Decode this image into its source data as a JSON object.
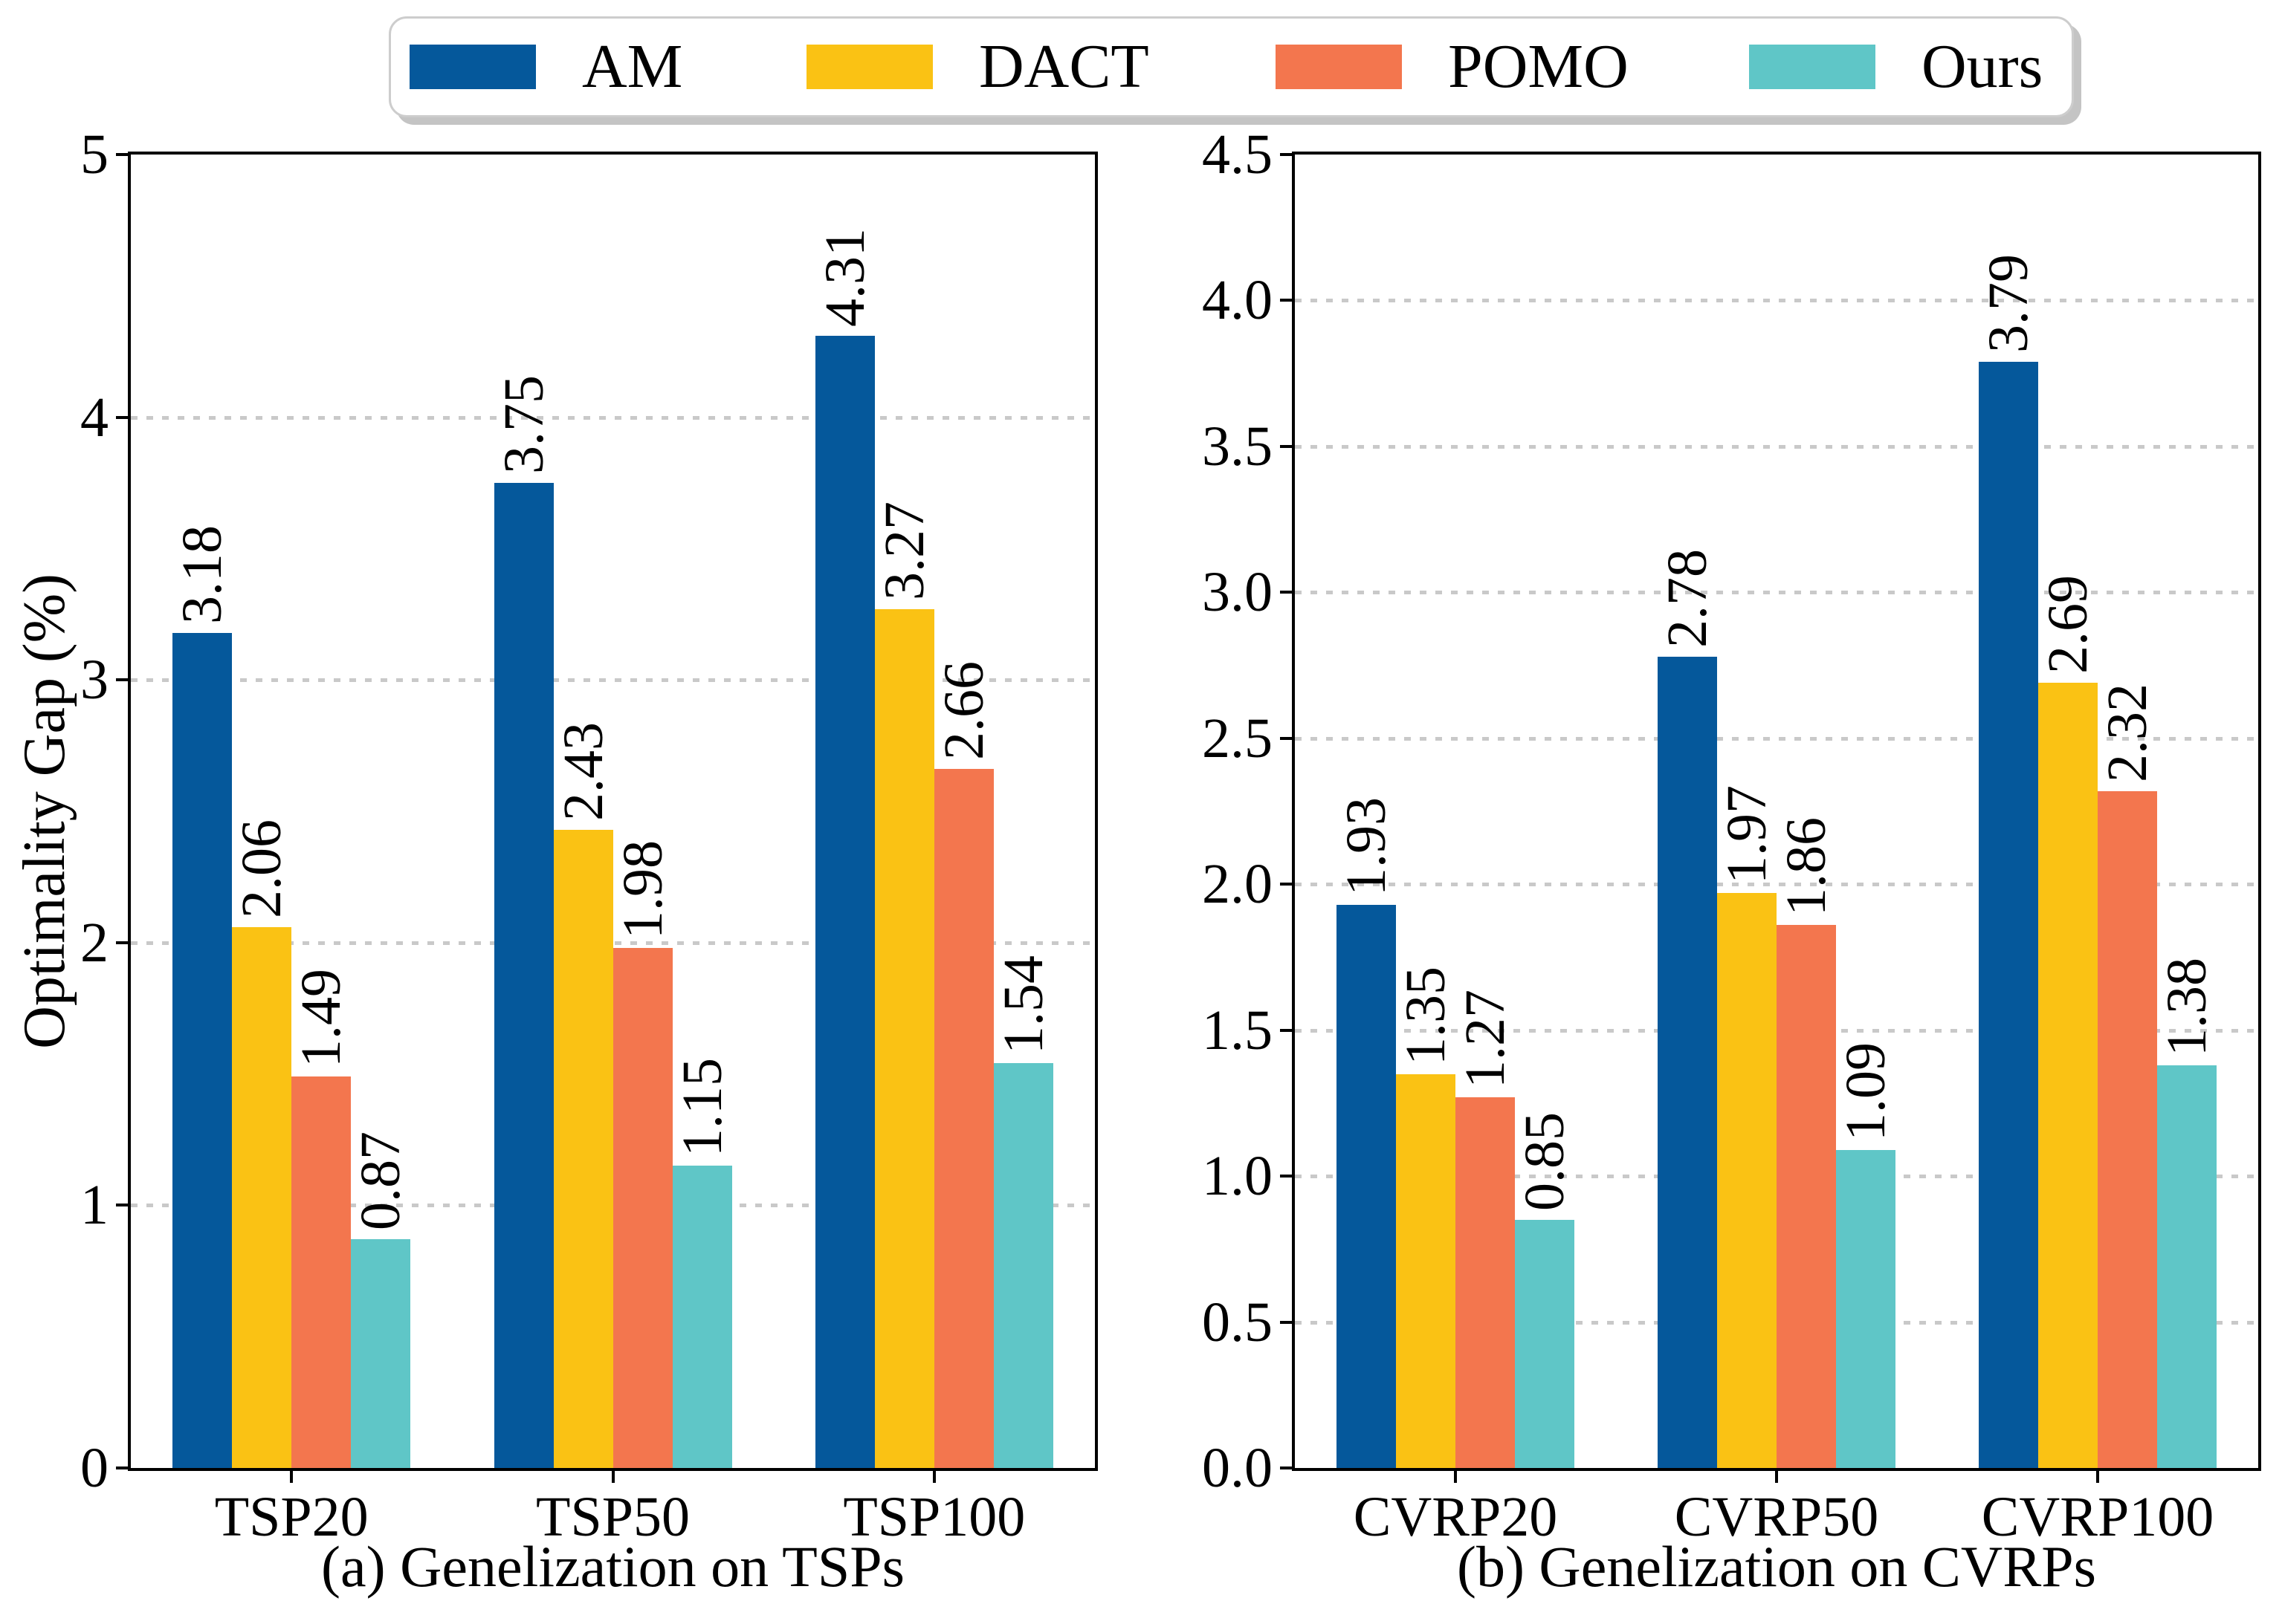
{
  "figure": {
    "background": "#ffffff",
    "text_color": "#000000",
    "grid_color": "#c9c9c9",
    "grid_style": "dotted"
  },
  "legend": {
    "position": "top",
    "entries": [
      {
        "label": "AM",
        "color": "#05589B"
      },
      {
        "label": "DACT",
        "color": "#FAC214"
      },
      {
        "label": "POMO",
        "color": "#F3764E"
      },
      {
        "label": "Ours",
        "color": "#5FC6C7"
      }
    ]
  },
  "chart_data": [
    {
      "type": "bar",
      "title": "(a) Genelization on TSPs",
      "ylabel": "Optimality Gap (%)",
      "categories": [
        "TSP20",
        "TSP50",
        "TSP100"
      ],
      "series": [
        {
          "name": "AM",
          "color": "#05589B",
          "values": [
            3.18,
            3.75,
            4.31
          ]
        },
        {
          "name": "DACT",
          "color": "#FAC214",
          "values": [
            2.06,
            2.43,
            3.27
          ]
        },
        {
          "name": "POMO",
          "color": "#F3764E",
          "values": [
            1.49,
            1.98,
            2.66
          ]
        },
        {
          "name": "Ours",
          "color": "#5FC6C7",
          "values": [
            0.87,
            1.15,
            1.54
          ]
        }
      ],
      "ylim": [
        0,
        5
      ],
      "ytick_values": [
        0,
        1,
        2,
        3,
        4,
        5
      ],
      "ytick_labels": [
        "0",
        "1",
        "2",
        "3",
        "4",
        "5"
      ],
      "grid": true,
      "bar_value_labels": true,
      "bar_value_label_rotation": 90
    },
    {
      "type": "bar",
      "title": "(b) Genelization on CVRPs",
      "ylabel": "",
      "categories": [
        "CVRP20",
        "CVRP50",
        "CVRP100"
      ],
      "series": [
        {
          "name": "AM",
          "color": "#05589B",
          "values": [
            1.93,
            2.78,
            3.79
          ]
        },
        {
          "name": "DACT",
          "color": "#FAC214",
          "values": [
            1.35,
            1.97,
            2.69
          ]
        },
        {
          "name": "POMO",
          "color": "#F3764E",
          "values": [
            1.27,
            1.86,
            2.32
          ]
        },
        {
          "name": "Ours",
          "color": "#5FC6C7",
          "values": [
            0.85,
            1.09,
            1.38
          ]
        }
      ],
      "ylim": [
        0,
        4.5
      ],
      "ytick_values": [
        0,
        0.5,
        1,
        1.5,
        2,
        2.5,
        3,
        3.5,
        4,
        4.5
      ],
      "ytick_labels": [
        "0.0",
        "0.5",
        "1.0",
        "1.5",
        "2.0",
        "2.5",
        "3.0",
        "3.5",
        "4.0",
        "4.5"
      ],
      "grid": true,
      "bar_value_labels": true,
      "bar_value_label_rotation": 90
    }
  ]
}
